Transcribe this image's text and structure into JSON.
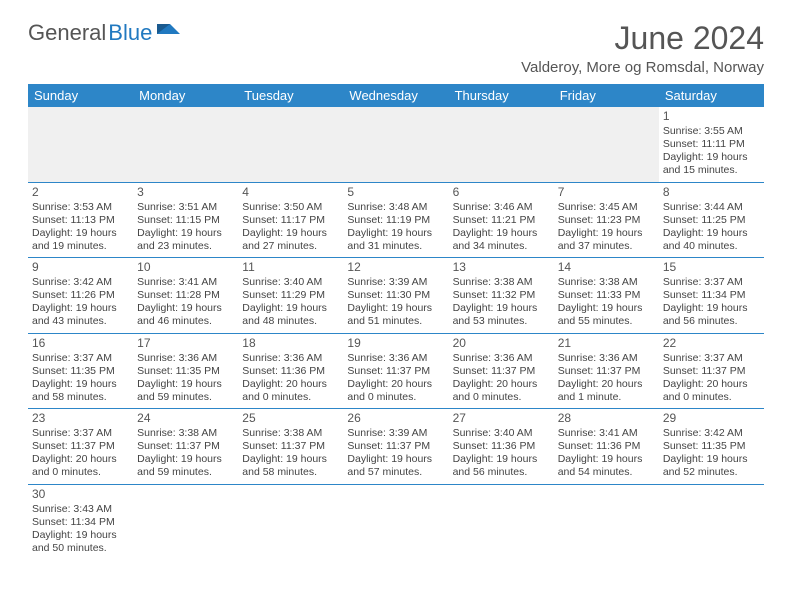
{
  "logo": {
    "general": "General",
    "blue": "Blue"
  },
  "title": {
    "month": "June 2024",
    "location": "Valderoy, More og Romsdal, Norway"
  },
  "dayHeaders": [
    "Sunday",
    "Monday",
    "Tuesday",
    "Wednesday",
    "Thursday",
    "Friday",
    "Saturday"
  ],
  "colors": {
    "headerBg": "#2d86c8",
    "headerText": "#ffffff",
    "altRowBg": "#f0f0f0",
    "borderColor": "#2d86c8",
    "textColor": "#444444"
  },
  "weeks": [
    [
      null,
      null,
      null,
      null,
      null,
      null,
      {
        "day": "1",
        "sunrise": "Sunrise: 3:55 AM",
        "sunset": "Sunset: 11:11 PM",
        "daylight1": "Daylight: 19 hours",
        "daylight2": "and 15 minutes."
      }
    ],
    [
      {
        "day": "2",
        "sunrise": "Sunrise: 3:53 AM",
        "sunset": "Sunset: 11:13 PM",
        "daylight1": "Daylight: 19 hours",
        "daylight2": "and 19 minutes."
      },
      {
        "day": "3",
        "sunrise": "Sunrise: 3:51 AM",
        "sunset": "Sunset: 11:15 PM",
        "daylight1": "Daylight: 19 hours",
        "daylight2": "and 23 minutes."
      },
      {
        "day": "4",
        "sunrise": "Sunrise: 3:50 AM",
        "sunset": "Sunset: 11:17 PM",
        "daylight1": "Daylight: 19 hours",
        "daylight2": "and 27 minutes."
      },
      {
        "day": "5",
        "sunrise": "Sunrise: 3:48 AM",
        "sunset": "Sunset: 11:19 PM",
        "daylight1": "Daylight: 19 hours",
        "daylight2": "and 31 minutes."
      },
      {
        "day": "6",
        "sunrise": "Sunrise: 3:46 AM",
        "sunset": "Sunset: 11:21 PM",
        "daylight1": "Daylight: 19 hours",
        "daylight2": "and 34 minutes."
      },
      {
        "day": "7",
        "sunrise": "Sunrise: 3:45 AM",
        "sunset": "Sunset: 11:23 PM",
        "daylight1": "Daylight: 19 hours",
        "daylight2": "and 37 minutes."
      },
      {
        "day": "8",
        "sunrise": "Sunrise: 3:44 AM",
        "sunset": "Sunset: 11:25 PM",
        "daylight1": "Daylight: 19 hours",
        "daylight2": "and 40 minutes."
      }
    ],
    [
      {
        "day": "9",
        "sunrise": "Sunrise: 3:42 AM",
        "sunset": "Sunset: 11:26 PM",
        "daylight1": "Daylight: 19 hours",
        "daylight2": "and 43 minutes."
      },
      {
        "day": "10",
        "sunrise": "Sunrise: 3:41 AM",
        "sunset": "Sunset: 11:28 PM",
        "daylight1": "Daylight: 19 hours",
        "daylight2": "and 46 minutes."
      },
      {
        "day": "11",
        "sunrise": "Sunrise: 3:40 AM",
        "sunset": "Sunset: 11:29 PM",
        "daylight1": "Daylight: 19 hours",
        "daylight2": "and 48 minutes."
      },
      {
        "day": "12",
        "sunrise": "Sunrise: 3:39 AM",
        "sunset": "Sunset: 11:30 PM",
        "daylight1": "Daylight: 19 hours",
        "daylight2": "and 51 minutes."
      },
      {
        "day": "13",
        "sunrise": "Sunrise: 3:38 AM",
        "sunset": "Sunset: 11:32 PM",
        "daylight1": "Daylight: 19 hours",
        "daylight2": "and 53 minutes."
      },
      {
        "day": "14",
        "sunrise": "Sunrise: 3:38 AM",
        "sunset": "Sunset: 11:33 PM",
        "daylight1": "Daylight: 19 hours",
        "daylight2": "and 55 minutes."
      },
      {
        "day": "15",
        "sunrise": "Sunrise: 3:37 AM",
        "sunset": "Sunset: 11:34 PM",
        "daylight1": "Daylight: 19 hours",
        "daylight2": "and 56 minutes."
      }
    ],
    [
      {
        "day": "16",
        "sunrise": "Sunrise: 3:37 AM",
        "sunset": "Sunset: 11:35 PM",
        "daylight1": "Daylight: 19 hours",
        "daylight2": "and 58 minutes."
      },
      {
        "day": "17",
        "sunrise": "Sunrise: 3:36 AM",
        "sunset": "Sunset: 11:35 PM",
        "daylight1": "Daylight: 19 hours",
        "daylight2": "and 59 minutes."
      },
      {
        "day": "18",
        "sunrise": "Sunrise: 3:36 AM",
        "sunset": "Sunset: 11:36 PM",
        "daylight1": "Daylight: 20 hours",
        "daylight2": "and 0 minutes."
      },
      {
        "day": "19",
        "sunrise": "Sunrise: 3:36 AM",
        "sunset": "Sunset: 11:37 PM",
        "daylight1": "Daylight: 20 hours",
        "daylight2": "and 0 minutes."
      },
      {
        "day": "20",
        "sunrise": "Sunrise: 3:36 AM",
        "sunset": "Sunset: 11:37 PM",
        "daylight1": "Daylight: 20 hours",
        "daylight2": "and 0 minutes."
      },
      {
        "day": "21",
        "sunrise": "Sunrise: 3:36 AM",
        "sunset": "Sunset: 11:37 PM",
        "daylight1": "Daylight: 20 hours",
        "daylight2": "and 1 minute."
      },
      {
        "day": "22",
        "sunrise": "Sunrise: 3:37 AM",
        "sunset": "Sunset: 11:37 PM",
        "daylight1": "Daylight: 20 hours",
        "daylight2": "and 0 minutes."
      }
    ],
    [
      {
        "day": "23",
        "sunrise": "Sunrise: 3:37 AM",
        "sunset": "Sunset: 11:37 PM",
        "daylight1": "Daylight: 20 hours",
        "daylight2": "and 0 minutes."
      },
      {
        "day": "24",
        "sunrise": "Sunrise: 3:38 AM",
        "sunset": "Sunset: 11:37 PM",
        "daylight1": "Daylight: 19 hours",
        "daylight2": "and 59 minutes."
      },
      {
        "day": "25",
        "sunrise": "Sunrise: 3:38 AM",
        "sunset": "Sunset: 11:37 PM",
        "daylight1": "Daylight: 19 hours",
        "daylight2": "and 58 minutes."
      },
      {
        "day": "26",
        "sunrise": "Sunrise: 3:39 AM",
        "sunset": "Sunset: 11:37 PM",
        "daylight1": "Daylight: 19 hours",
        "daylight2": "and 57 minutes."
      },
      {
        "day": "27",
        "sunrise": "Sunrise: 3:40 AM",
        "sunset": "Sunset: 11:36 PM",
        "daylight1": "Daylight: 19 hours",
        "daylight2": "and 56 minutes."
      },
      {
        "day": "28",
        "sunrise": "Sunrise: 3:41 AM",
        "sunset": "Sunset: 11:36 PM",
        "daylight1": "Daylight: 19 hours",
        "daylight2": "and 54 minutes."
      },
      {
        "day": "29",
        "sunrise": "Sunrise: 3:42 AM",
        "sunset": "Sunset: 11:35 PM",
        "daylight1": "Daylight: 19 hours",
        "daylight2": "and 52 minutes."
      }
    ],
    [
      {
        "day": "30",
        "sunrise": "Sunrise: 3:43 AM",
        "sunset": "Sunset: 11:34 PM",
        "daylight1": "Daylight: 19 hours",
        "daylight2": "and 50 minutes."
      },
      null,
      null,
      null,
      null,
      null,
      null
    ]
  ]
}
